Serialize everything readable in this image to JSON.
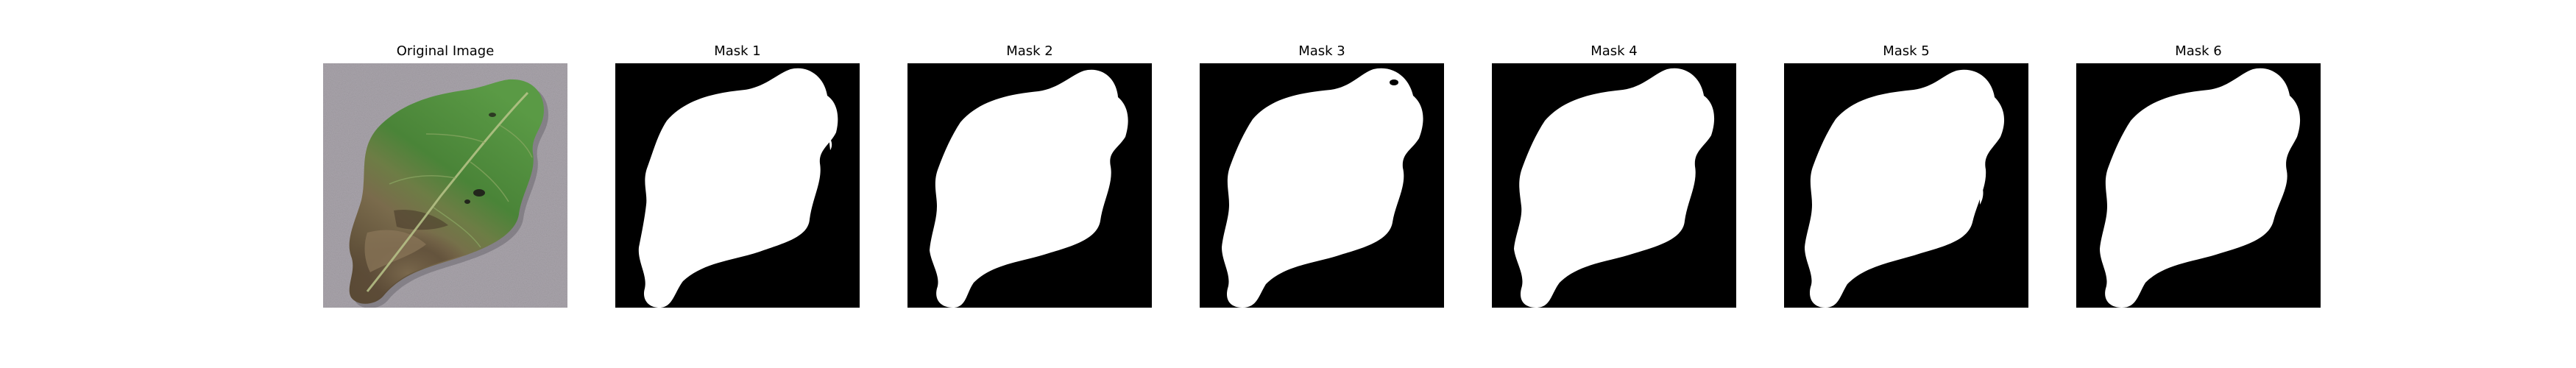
{
  "panels": [
    {
      "title": "Original Image",
      "kind": "photo",
      "subject": "potato-leaf-with-blight"
    },
    {
      "title": "Mask 1",
      "kind": "mask",
      "variant": 0
    },
    {
      "title": "Mask 2",
      "kind": "mask",
      "variant": 1
    },
    {
      "title": "Mask 3",
      "kind": "mask",
      "variant": 2
    },
    {
      "title": "Mask 4",
      "kind": "mask",
      "variant": 3
    },
    {
      "title": "Mask 5",
      "kind": "mask",
      "variant": 4
    },
    {
      "title": "Mask 6",
      "kind": "mask",
      "variant": 5
    }
  ],
  "colors": {
    "mask_background": "#000000",
    "mask_foreground": "#ffffff",
    "photo_background": "#a9a4ab",
    "leaf_green": "#4f8a3c",
    "leaf_dark_green": "#2f5e27",
    "leaf_brown": "#6b5a40",
    "leaf_dark_brown": "#3d3124"
  }
}
